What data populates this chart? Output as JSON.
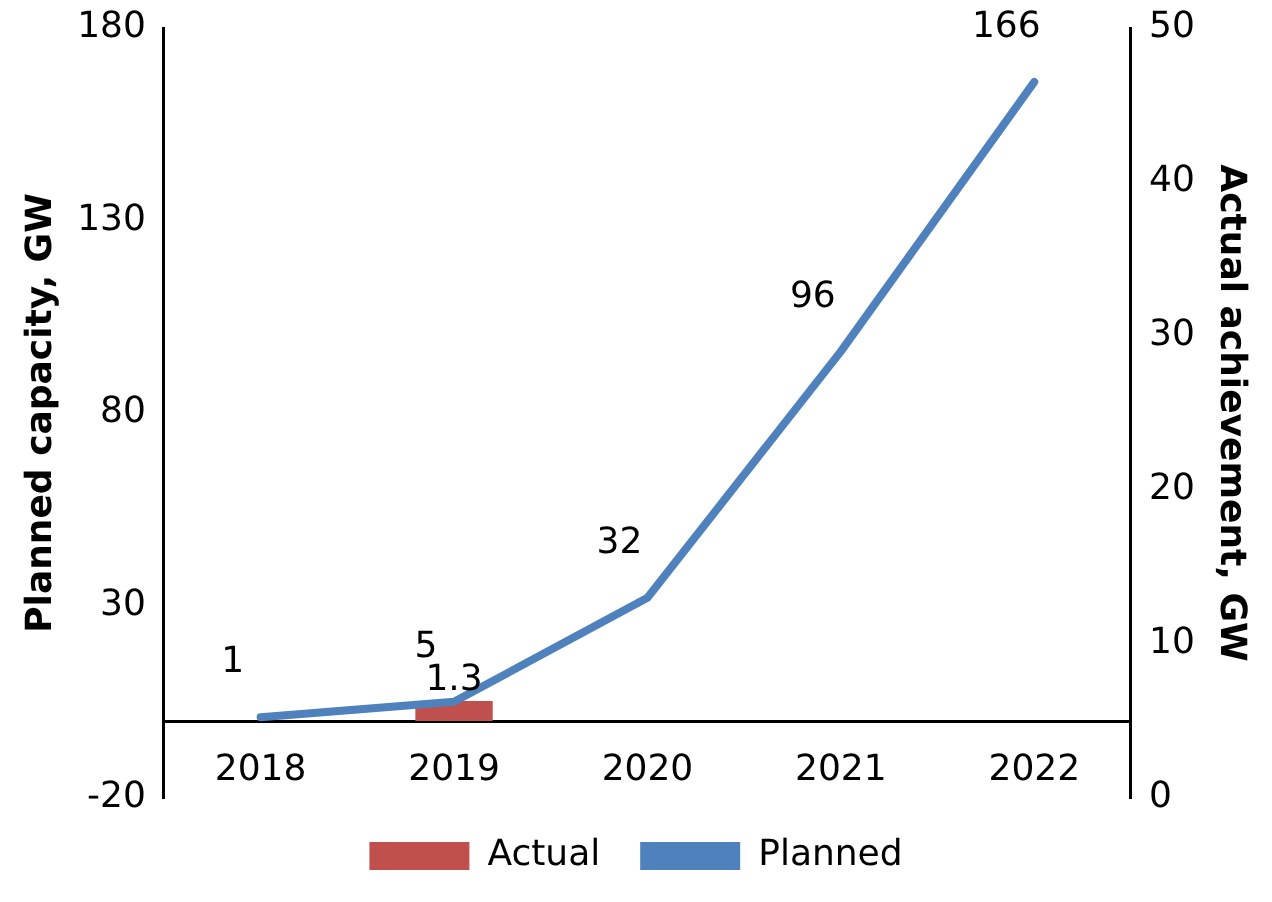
{
  "chart_data": {
    "type": "bar",
    "categories": [
      "2018",
      "2019",
      "2020",
      "2021",
      "2022"
    ],
    "series": [
      {
        "name": "Actual",
        "type": "bar",
        "axis": "y2",
        "color": "#c0504d",
        "values": [
          null,
          1.3,
          null,
          null,
          null
        ],
        "base": [
          null,
          5,
          null,
          null,
          null
        ]
      },
      {
        "name": "Planned",
        "type": "line",
        "axis": "y",
        "color": "#4f81bd",
        "values": [
          1,
          5,
          32,
          96,
          166
        ]
      }
    ],
    "ylabel": "Planned capacity, GW",
    "y2label": "Actual achievement, GW",
    "ylim": [
      -20,
      180
    ],
    "yticks": [
      -20,
      30,
      80,
      130,
      180
    ],
    "y2lim": [
      0,
      50
    ],
    "y2ticks": [
      0,
      10,
      20,
      30,
      40,
      50
    ],
    "data_labels": true,
    "grid": false,
    "legend": "bottom",
    "marker": "none",
    "line_style": "solid"
  }
}
